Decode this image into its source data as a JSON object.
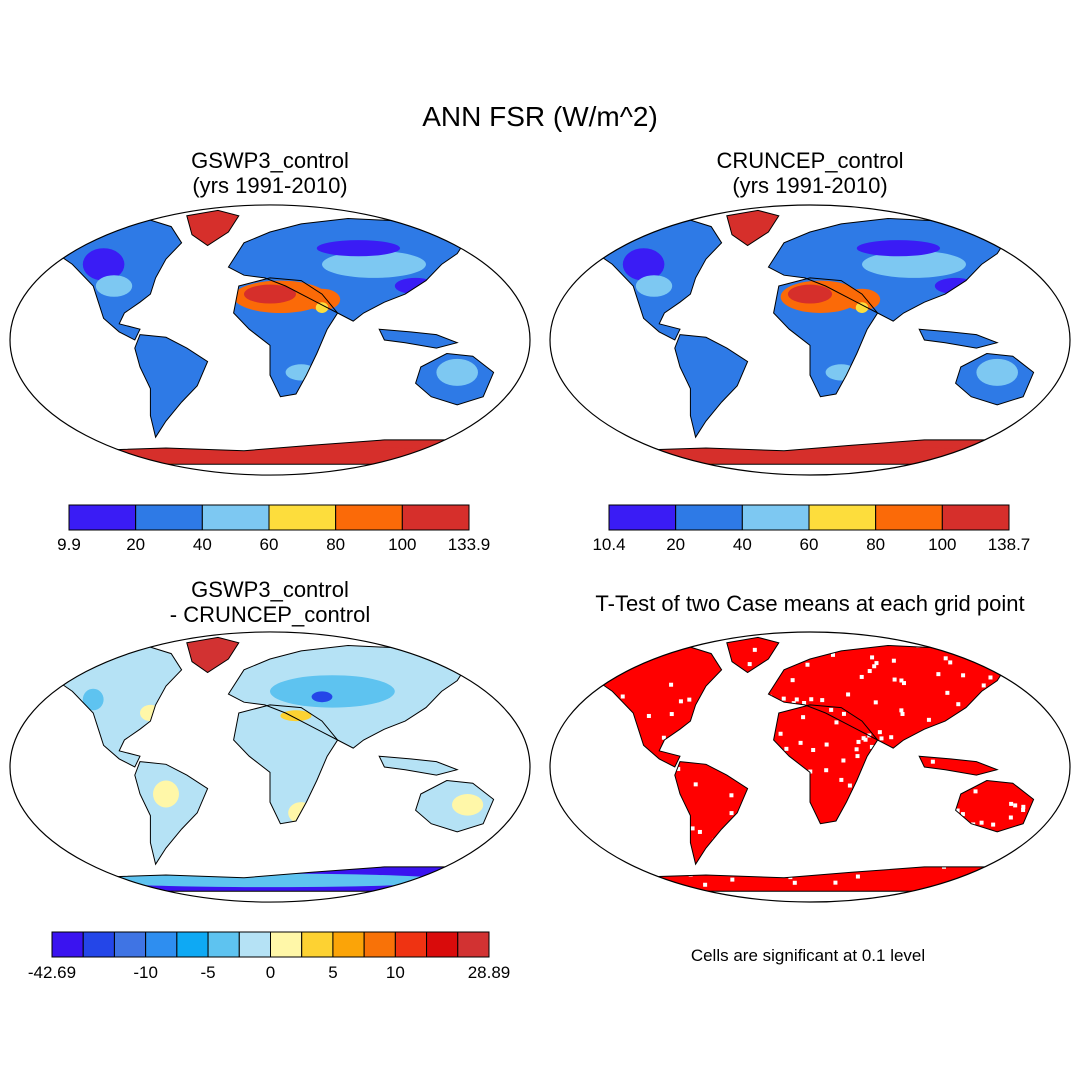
{
  "title": "ANN FSR (W/m^2)",
  "panels": [
    {
      "id": "gswp3",
      "title_lines": [
        "GSWP3_control",
        "(yrs 1991-2010)"
      ],
      "colorbar": {
        "labels": [
          "9.9",
          "20",
          "40",
          "60",
          "80",
          "100",
          "133.9"
        ],
        "colors": [
          "#3a1cf5",
          "#2e7ae6",
          "#7dc8f2",
          "#fddd3c",
          "#fb6a08",
          "#d62f2b"
        ]
      }
    },
    {
      "id": "cruncep",
      "title_lines": [
        "CRUNCEP_control",
        "(yrs 1991-2010)"
      ],
      "colorbar": {
        "labels": [
          "10.4",
          "20",
          "40",
          "60",
          "80",
          "100",
          "138.7"
        ],
        "colors": [
          "#3a1cf5",
          "#2e7ae6",
          "#7dc8f2",
          "#fddd3c",
          "#fb6a08",
          "#d62f2b"
        ]
      }
    },
    {
      "id": "difference",
      "title_lines": [
        "GSWP3_control",
        "- CRUNCEP_control"
      ],
      "colorbar": {
        "labels": [
          "-42.69",
          "-10",
          "-5",
          "0",
          "5",
          "10",
          "28.89"
        ],
        "label_box_index": [
          0,
          3,
          5,
          7,
          9,
          11,
          14
        ],
        "colors": [
          "#3a13f0",
          "#2446e8",
          "#3f74e4",
          "#2e8ef0",
          "#0ea9f4",
          "#5ec3f0",
          "#b5e2f5",
          "#fff7a8",
          "#fdd232",
          "#fba408",
          "#f87208",
          "#ef3312",
          "#d90b0b",
          "#d23232"
        ]
      }
    },
    {
      "id": "ttest",
      "title_lines": [
        "T-Test of two Case means at each grid point"
      ],
      "note": "Cells are significant at 0.1 level"
    }
  ],
  "map_colors": {
    "ocean": "#ffffff",
    "coast": "#000000",
    "gswp3": {
      "land": "#2e7ae6",
      "desert": "#fb6a08",
      "desert_hot": "#d62f2b",
      "dark": "#3a1cf5",
      "light": "#7dc8f2",
      "yellow": "#fddd3c",
      "ice": "#d62f2b",
      "ice_edge": "#fb6a08"
    },
    "cruncep": {
      "land": "#2e7ae6",
      "desert": "#fb6a08",
      "desert_hot": "#d62f2b",
      "dark": "#3a1cf5",
      "light": "#7dc8f2",
      "yellow": "#fddd3c",
      "ice": "#d62f2b",
      "ice_edge": "#fb6a08"
    },
    "difference": {
      "land": "#b5e2f5",
      "yellow": "#fff7a8",
      "orange": "#fdd232",
      "blue": "#5ec3f0",
      "dark": "#2446e8",
      "ice": "#3a13f0",
      "green_red": "#d23232"
    },
    "ttest": {
      "land": "#ff0000",
      "speck": "#ffffff"
    }
  }
}
